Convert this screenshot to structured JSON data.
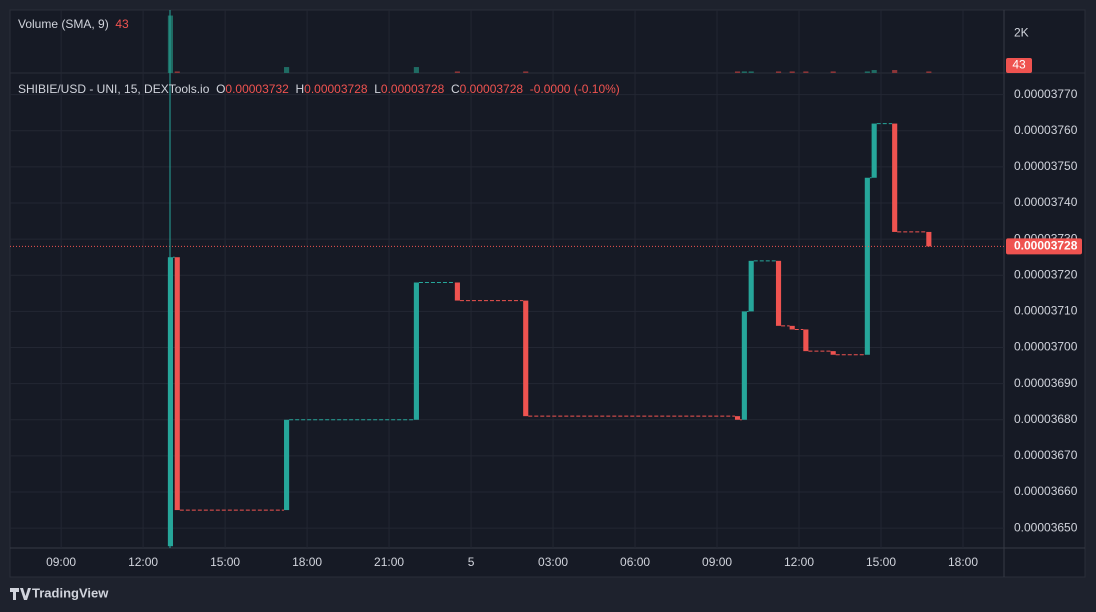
{
  "chart_data": {
    "type": "candlestick",
    "symbol": "SHIBIE/USD - UNI, 15, DEXTools.io",
    "ohlc_labels": [
      "O",
      "H",
      "L",
      "C"
    ],
    "ohlc_values": [
      {
        "value": 3.732e-05,
        "label": "0.00003732"
      },
      {
        "value": 3.728e-05,
        "label": "0.00003728"
      },
      {
        "value": 3.728e-05,
        "label": "0.00003728"
      },
      {
        "value": 3.728e-05,
        "label": "0.00003728"
      }
    ],
    "change": "-0.0000 (-0.10%)",
    "x": [
      13.0,
      13.25,
      17.25,
      22.0,
      23.5,
      26.0,
      33.75,
      34.0,
      34.25,
      35.25,
      35.75,
      36.25,
      37.25,
      38.5,
      38.75,
      39.5,
      40.75
    ],
    "open": [
      3.645e-05,
      3.725e-05,
      3.655e-05,
      3.68e-05,
      3.718e-05,
      3.713e-05,
      3.681e-05,
      3.68e-05,
      3.71e-05,
      3.724e-05,
      3.706e-05,
      3.705e-05,
      3.699e-05,
      3.698e-05,
      3.747e-05,
      3.762e-05,
      3.732e-05
    ],
    "close": [
      3.725e-05,
      3.655e-05,
      3.68e-05,
      3.718e-05,
      3.713e-05,
      3.681e-05,
      3.68e-05,
      3.71e-05,
      3.724e-05,
      3.706e-05,
      3.705e-05,
      3.699e-05,
      3.698e-05,
      3.747e-05,
      3.762e-05,
      3.732e-05,
      3.728e-05
    ],
    "colors": {
      "up": "#26a69a",
      "down": "#ef5350"
    },
    "xlim": [
      7.13,
      43.5
    ],
    "xticks": [
      {
        "value": 9,
        "label": "09:00"
      },
      {
        "value": 12,
        "label": "12:00"
      },
      {
        "value": 15,
        "label": "15:00"
      },
      {
        "value": 18,
        "label": "18:00"
      },
      {
        "value": 21,
        "label": "21:00"
      },
      {
        "value": 24,
        "label": "5"
      },
      {
        "value": 27,
        "label": "03:00"
      },
      {
        "value": 30,
        "label": "06:00"
      },
      {
        "value": 33,
        "label": "09:00"
      },
      {
        "value": 36,
        "label": "12:00"
      },
      {
        "value": 39,
        "label": "15:00"
      },
      {
        "value": 42,
        "label": "18:00"
      }
    ],
    "ylim": [
      3.6445e-05,
      3.776e-05
    ],
    "yticks": [
      {
        "value": 3.65e-05,
        "label": "0.00003650"
      },
      {
        "value": 3.66e-05,
        "label": "0.00003660"
      },
      {
        "value": 3.67e-05,
        "label": "0.00003670"
      },
      {
        "value": 3.68e-05,
        "label": "0.00003680"
      },
      {
        "value": 3.69e-05,
        "label": "0.00003690"
      },
      {
        "value": 3.7e-05,
        "label": "0.00003700"
      },
      {
        "value": 3.71e-05,
        "label": "0.00003710"
      },
      {
        "value": 3.72e-05,
        "label": "0.00003720"
      },
      {
        "value": 3.73e-05,
        "label": "0.00003730"
      },
      {
        "value": 3.74e-05,
        "label": "0.00003740"
      },
      {
        "value": 3.75e-05,
        "label": "0.00003750"
      },
      {
        "value": 3.76e-05,
        "label": "0.00003760"
      },
      {
        "value": 3.77e-05,
        "label": "0.00003770"
      }
    ],
    "last_price": {
      "value": 3.728e-05,
      "label": "0.00003728"
    },
    "grid": true,
    "volume": {
      "title": "Volume (SMA, 9)",
      "sma": 43,
      "values": [
        2900,
        80,
        300,
        300,
        80,
        80,
        80,
        80,
        80,
        80,
        80,
        80,
        80,
        80,
        150,
        150,
        80
      ],
      "colors": {
        "up": "#1f6b63",
        "down": "#8c3538"
      },
      "ylim": [
        0,
        3180
      ],
      "yticks": [
        {
          "value": 2000,
          "label": "2K"
        }
      ]
    },
    "brand": "TradingView"
  }
}
